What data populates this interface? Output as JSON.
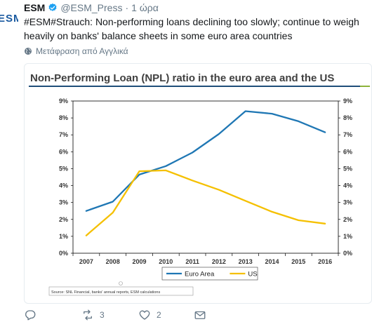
{
  "tweet": {
    "avatar_text": "ESM",
    "name": "ESM",
    "handle": "@ESM_Press",
    "separator": "·",
    "time": "1 ώρα",
    "text": "#ESM#Strauch: Non-performing loans declining too slowly; continue to weigh heavily on banks' balance sheets in some euro area countries",
    "translate_label": "Μετάφραση από Αγγλικά",
    "reply_count": "",
    "retweet_count": "3",
    "like_count": "2"
  },
  "colors": {
    "brand": "#1a5aa0",
    "verified": "#1da1f2",
    "euro_area": "#1f77b4",
    "us": "#f5c000",
    "title_bar": "#1f4e79",
    "accent_green": "#8db33a"
  },
  "chart_data": {
    "type": "line",
    "title": "Non-Performing Loan (NPL) ratio in the euro area and the US",
    "categories": [
      "2007",
      "2008",
      "2009",
      "2010",
      "2011",
      "2012",
      "2013",
      "2014",
      "2015",
      "2016"
    ],
    "series": [
      {
        "name": "Euro Area",
        "values": [
          2.5,
          3.05,
          4.65,
          5.15,
          5.95,
          7.05,
          8.4,
          8.25,
          7.8,
          7.15
        ]
      },
      {
        "name": "US",
        "values": [
          1.05,
          2.4,
          4.85,
          4.9,
          4.3,
          3.75,
          3.1,
          2.45,
          1.95,
          1.75
        ]
      }
    ],
    "yticks": [
      "0%",
      "1%",
      "2%",
      "3%",
      "4%",
      "5%",
      "6%",
      "7%",
      "8%",
      "9%"
    ],
    "ylim": [
      0,
      9
    ],
    "y_axis_both_sides": true,
    "grid": false,
    "legend": "bottom",
    "source": "Source: SNL Financial, banks' annual reports, ESM calculations"
  }
}
